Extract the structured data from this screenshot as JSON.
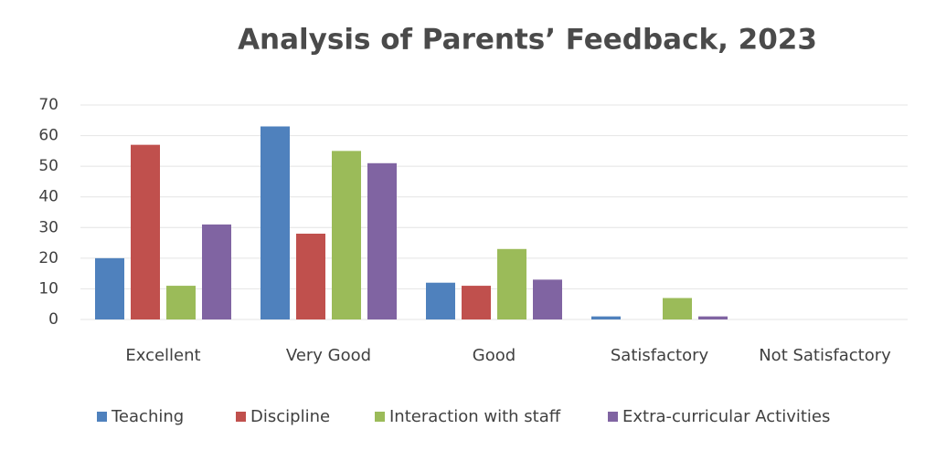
{
  "chart_data": {
    "type": "bar",
    "title": "Analysis of Parents’ Feedback, 2023",
    "categories": [
      "Excellent",
      "Very Good",
      "Good",
      "Satisfactory",
      "Not Satisfactory"
    ],
    "series": [
      {
        "name": "Teaching",
        "color": "#4f81bd",
        "values": [
          20,
          63,
          12,
          1,
          0
        ]
      },
      {
        "name": "Discipline",
        "color": "#c0504d",
        "values": [
          57,
          28,
          11,
          0,
          0
        ]
      },
      {
        "name": "Interaction with staff",
        "color": "#9bbb59",
        "values": [
          11,
          55,
          23,
          7,
          0
        ]
      },
      {
        "name": "Extra-curricular Activities",
        "color": "#8064a2",
        "values": [
          31,
          51,
          13,
          1,
          0
        ]
      }
    ],
    "ylim": [
      0,
      70
    ],
    "yticks": [
      0,
      10,
      20,
      30,
      40,
      50,
      60,
      70
    ],
    "grid": true,
    "legend": "bottom"
  }
}
